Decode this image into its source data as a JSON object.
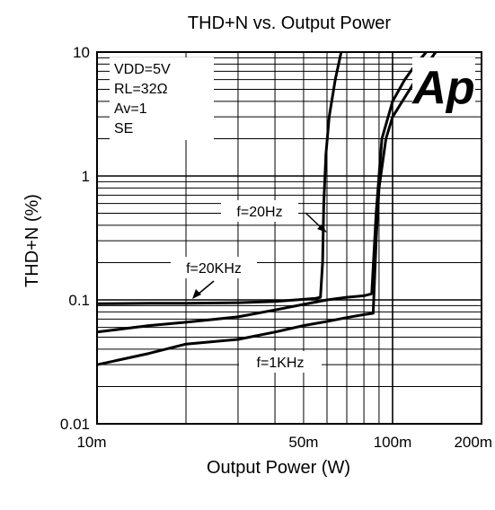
{
  "chart_data": {
    "type": "line",
    "title": "THD+N vs. Output Power",
    "xlabel": "Output Power (W)",
    "ylabel": "THD+N (%)",
    "x_scale": "log",
    "y_scale": "log",
    "xlim": [
      0.01,
      0.2
    ],
    "ylim": [
      0.01,
      10
    ],
    "grid": true,
    "x_ticks": [
      {
        "value": 0.01,
        "label": "10m"
      },
      {
        "value": 0.05,
        "label": "50m"
      },
      {
        "value": 0.1,
        "label": "100m"
      },
      {
        "value": 0.2,
        "label": "200m"
      }
    ],
    "y_ticks": [
      {
        "value": 0.01,
        "label": "0.01"
      },
      {
        "value": 0.1,
        "label": "0.1"
      },
      {
        "value": 1,
        "label": "1"
      },
      {
        "value": 10,
        "label": "10"
      }
    ],
    "conditions": [
      "VDD=5V",
      "RL=32Ω",
      "Av=1",
      "SE"
    ],
    "logo_text": "Ap",
    "series": [
      {
        "name": "f=20Hz",
        "points": [
          [
            0.01,
            0.093
          ],
          [
            0.015,
            0.094
          ],
          [
            0.02,
            0.094
          ],
          [
            0.03,
            0.095
          ],
          [
            0.04,
            0.097
          ],
          [
            0.05,
            0.101
          ],
          [
            0.055,
            0.103
          ],
          [
            0.057,
            0.105
          ],
          [
            0.058,
            0.2
          ],
          [
            0.0585,
            0.6
          ],
          [
            0.0595,
            1.5
          ],
          [
            0.061,
            3
          ],
          [
            0.064,
            6
          ],
          [
            0.067,
            10
          ]
        ]
      },
      {
        "name": "f=20KHz",
        "points": [
          [
            0.01,
            0.055
          ],
          [
            0.015,
            0.062
          ],
          [
            0.02,
            0.066
          ],
          [
            0.03,
            0.073
          ],
          [
            0.04,
            0.083
          ],
          [
            0.05,
            0.092
          ],
          [
            0.06,
            0.1
          ],
          [
            0.07,
            0.105
          ],
          [
            0.08,
            0.108
          ],
          [
            0.085,
            0.112
          ],
          [
            0.088,
            0.5
          ],
          [
            0.092,
            2
          ],
          [
            0.1,
            4
          ],
          [
            0.11,
            6
          ],
          [
            0.12,
            8
          ],
          [
            0.13,
            10
          ]
        ]
      },
      {
        "name": "f=1KHz",
        "points": [
          [
            0.01,
            0.03
          ],
          [
            0.015,
            0.037
          ],
          [
            0.02,
            0.044
          ],
          [
            0.03,
            0.048
          ],
          [
            0.04,
            0.055
          ],
          [
            0.05,
            0.062
          ],
          [
            0.06,
            0.067
          ],
          [
            0.07,
            0.072
          ],
          [
            0.08,
            0.076
          ],
          [
            0.086,
            0.078
          ],
          [
            0.088,
            0.3
          ],
          [
            0.09,
            0.8
          ],
          [
            0.095,
            2
          ],
          [
            0.1,
            3
          ],
          [
            0.12,
            6
          ],
          [
            0.14,
            10
          ]
        ]
      }
    ],
    "annotations": [
      {
        "text": "f=20Hz",
        "for": "f=20Hz"
      },
      {
        "text": "f=20KHz",
        "for": "f=20KHz"
      },
      {
        "text": "f=1KHz",
        "for": "f=1KHz"
      }
    ]
  }
}
